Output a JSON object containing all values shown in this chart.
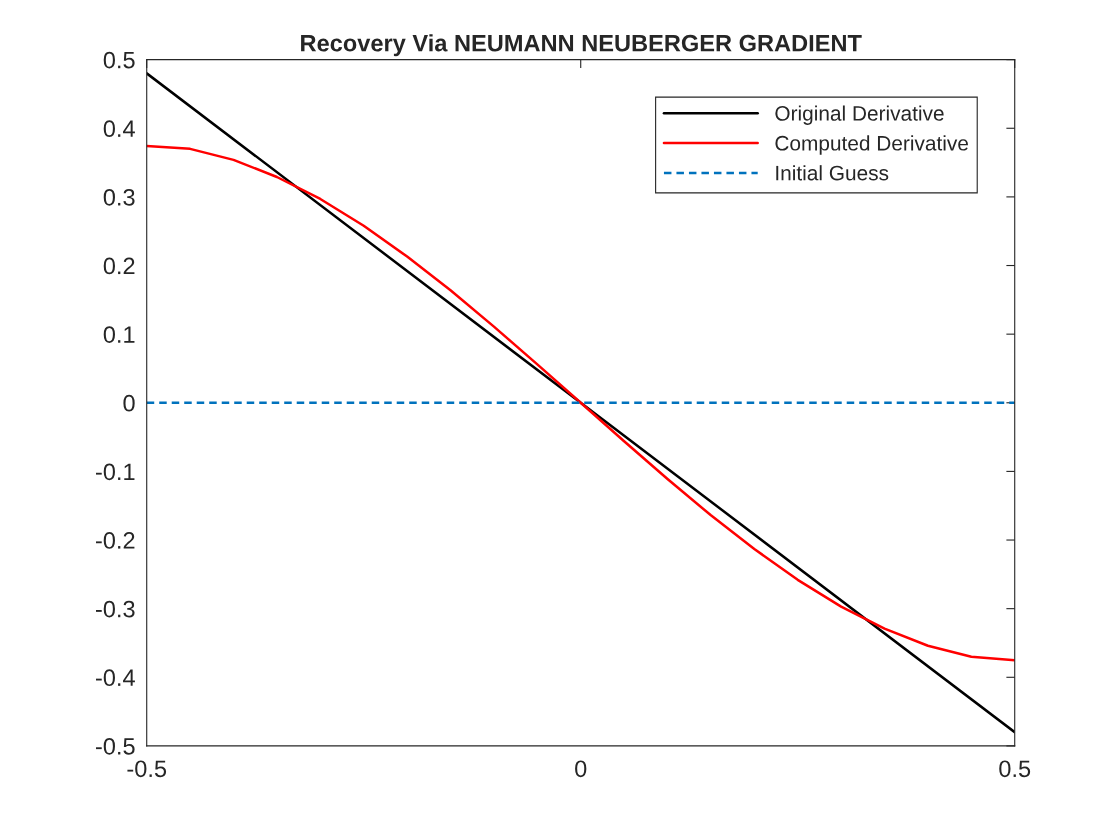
{
  "chart_data": {
    "type": "line",
    "title": "Recovery Via NEUMANN NEUBERGER GRADIENT",
    "series": [
      {
        "name": "Original Derivative",
        "color": "#000000",
        "line_style": "solid",
        "x": [
          -0.5,
          0,
          0.5
        ],
        "values": [
          0.48,
          0,
          -0.48
        ]
      },
      {
        "name": "Computed Derivative",
        "color": "#ff0000",
        "line_style": "solid",
        "x": [
          -0.5,
          -0.45,
          -0.4,
          -0.35,
          -0.3,
          -0.25,
          -0.2,
          -0.15,
          -0.1,
          -0.05,
          0,
          0.05,
          0.1,
          0.15,
          0.2,
          0.25,
          0.3,
          0.35,
          0.4,
          0.45,
          0.5
        ],
        "values": [
          0.374,
          0.37,
          0.354,
          0.329,
          0.297,
          0.258,
          0.213,
          0.164,
          0.111,
          0.056,
          0,
          -0.056,
          -0.111,
          -0.164,
          -0.213,
          -0.258,
          -0.297,
          -0.329,
          -0.354,
          -0.37,
          -0.375
        ]
      },
      {
        "name": "Initial Guess",
        "color": "#0072bd",
        "line_style": "dashed",
        "x": [
          -0.5,
          0.5
        ],
        "values": [
          0,
          0
        ]
      }
    ],
    "xlim": [
      -0.5,
      0.5
    ],
    "xticks": [
      -0.5,
      0,
      0.5
    ],
    "ylim": [
      -0.5,
      0.5
    ],
    "yticks": [
      -0.5,
      -0.4,
      -0.3,
      -0.2,
      -0.1,
      0,
      0.1,
      0.2,
      0.3,
      0.4,
      0.5
    ],
    "grid": false,
    "legend": "top right",
    "marker": "none"
  }
}
